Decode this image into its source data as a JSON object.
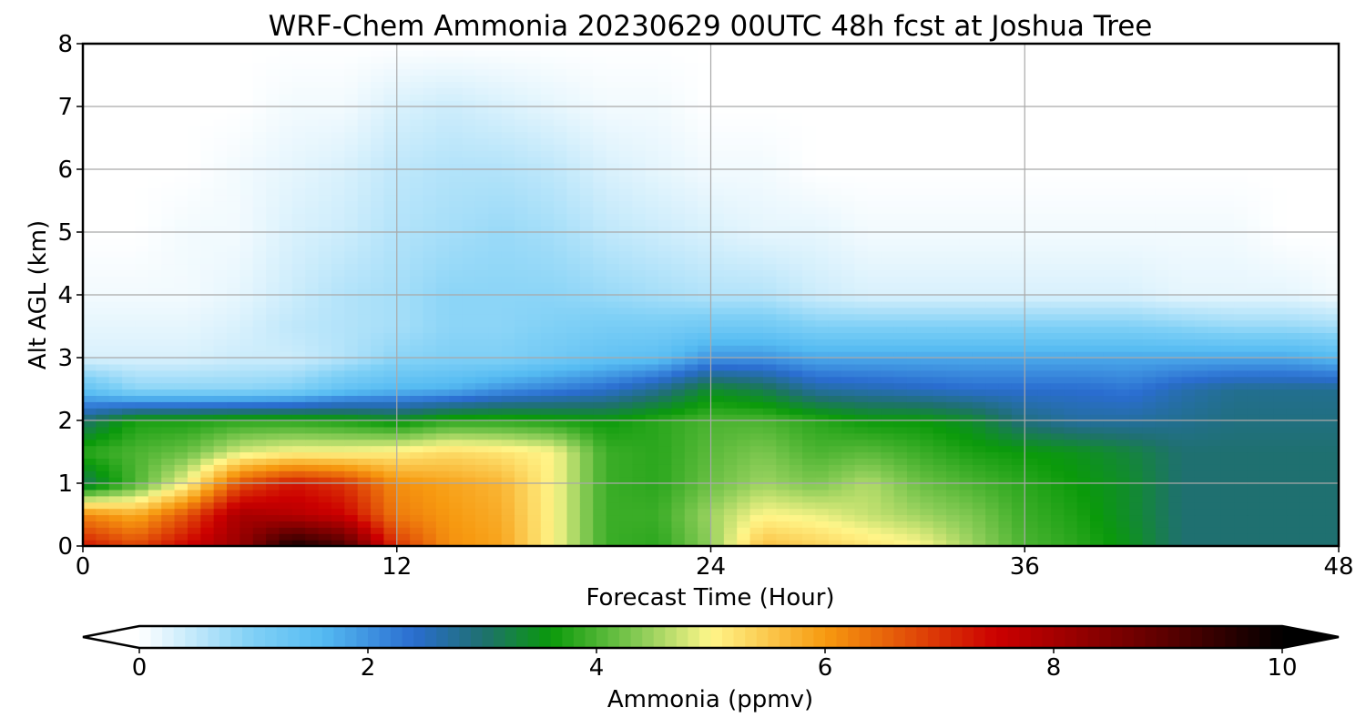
{
  "chart_data": {
    "type": "heatmap",
    "title": "WRF-Chem Ammonia  20230629 00UTC 48h fcst at Joshua Tree",
    "xlabel": "Forecast Time (Hour)",
    "ylabel": "Alt AGL (km)",
    "xlim": [
      0,
      48
    ],
    "ylim": [
      0,
      8
    ],
    "xticks": [
      0,
      12,
      24,
      36,
      48
    ],
    "yticks": [
      0,
      1,
      2,
      3,
      4,
      5,
      6,
      7,
      8
    ],
    "grid": true,
    "colorbar": {
      "label": "Ammonia  (ppmv)",
      "min": 0,
      "max": 10,
      "ticks": [
        0,
        2,
        4,
        6,
        8,
        10
      ],
      "extend": "both",
      "stops": [
        {
          "v": 0,
          "c": "#ffffff"
        },
        {
          "v": 1,
          "c": "#7fd0f6"
        },
        {
          "v": 1.6,
          "c": "#55bbf2"
        },
        {
          "v": 2.4,
          "c": "#2a6dd0"
        },
        {
          "v": 3.0,
          "c": "#1f7070"
        },
        {
          "v": 3.6,
          "c": "#0a9a0a"
        },
        {
          "v": 4.4,
          "c": "#8ccd58"
        },
        {
          "v": 5.0,
          "c": "#fff68a"
        },
        {
          "v": 6.0,
          "c": "#f79a10"
        },
        {
          "v": 7.5,
          "c": "#cc0000"
        },
        {
          "v": 9.0,
          "c": "#5a0000"
        },
        {
          "v": 10,
          "c": "#000000"
        }
      ]
    },
    "grid_data": {
      "x": [
        0,
        2,
        4,
        6,
        8,
        10,
        12,
        14,
        16,
        18,
        20,
        22,
        24,
        26,
        28,
        30,
        32,
        34,
        36,
        38,
        40,
        42,
        44,
        46,
        48
      ],
      "y": [
        0,
        0.5,
        1,
        1.5,
        2,
        2.5,
        3,
        3.5,
        4,
        5,
        6,
        7,
        8
      ],
      "z": [
        [
          7.3,
          6.8,
          7.5,
          8.2,
          9.8,
          9.2,
          7.0,
          6.1,
          5.9,
          5.0,
          3.9,
          3.8,
          4.4,
          5.6,
          5.4,
          5.2,
          5.0,
          4.5,
          4.0,
          3.8,
          3.5,
          3.0,
          3.0,
          3.0,
          3.0
        ],
        [
          6.2,
          5.8,
          6.7,
          8.0,
          7.8,
          7.5,
          6.3,
          6.0,
          5.8,
          5.0,
          3.9,
          3.9,
          4.5,
          5.0,
          4.9,
          4.7,
          4.5,
          4.3,
          3.9,
          3.7,
          3.4,
          3.0,
          3.0,
          3.0,
          3.0
        ],
        [
          3.1,
          4.0,
          5.0,
          6.7,
          7.3,
          7.0,
          6.1,
          5.9,
          5.7,
          5.0,
          3.9,
          3.8,
          4.2,
          4.5,
          4.3,
          4.6,
          4.2,
          4.0,
          3.8,
          3.6,
          3.4,
          3.0,
          3.0,
          3.0,
          3.0
        ],
        [
          3.8,
          4.0,
          4.2,
          4.8,
          5.0,
          5.0,
          5.1,
          5.3,
          5.2,
          5.0,
          3.9,
          3.8,
          4.1,
          4.3,
          4.0,
          4.1,
          3.9,
          3.7,
          3.6,
          3.5,
          3.3,
          3.0,
          3.0,
          3.0,
          3.0
        ],
        [
          3.0,
          3.7,
          3.7,
          3.8,
          3.8,
          3.7,
          3.5,
          3.8,
          3.8,
          3.7,
          3.6,
          3.8,
          4.0,
          4.0,
          3.8,
          3.6,
          3.6,
          3.4,
          2.9,
          2.7,
          2.7,
          2.8,
          2.9,
          2.9,
          2.9
        ],
        [
          1.4,
          0.9,
          0.9,
          0.9,
          1.0,
          1.4,
          1.6,
          1.7,
          2.0,
          2.2,
          2.4,
          2.8,
          3.4,
          3.2,
          2.7,
          2.6,
          2.5,
          2.4,
          2.4,
          2.4,
          2.3,
          2.6,
          2.8,
          2.8,
          2.8
        ],
        [
          0.3,
          0.3,
          0.3,
          0.4,
          0.4,
          0.6,
          0.9,
          1.0,
          1.0,
          1.2,
          1.4,
          1.5,
          2.0,
          2.0,
          1.8,
          1.8,
          1.8,
          1.8,
          1.8,
          1.8,
          1.8,
          1.8,
          1.8,
          1.8,
          1.6
        ],
        [
          0.2,
          0.2,
          0.2,
          0.3,
          0.5,
          0.6,
          0.7,
          0.9,
          0.9,
          1.0,
          1.1,
          1.1,
          1.2,
          1.2,
          1.0,
          1.0,
          1.0,
          1.0,
          1.0,
          1.0,
          1.0,
          0.9,
          0.8,
          0.8,
          0.7
        ],
        [
          0.1,
          0.1,
          0.1,
          0.2,
          0.4,
          0.6,
          0.7,
          0.9,
          0.9,
          0.9,
          0.8,
          0.7,
          0.6,
          0.6,
          0.4,
          0.3,
          0.3,
          0.3,
          0.3,
          0.3,
          0.3,
          0.2,
          0.2,
          0.2,
          0.1
        ],
        [
          0.0,
          0.0,
          0.1,
          0.1,
          0.3,
          0.4,
          0.6,
          0.7,
          0.8,
          0.7,
          0.5,
          0.4,
          0.3,
          0.2,
          0.2,
          0.1,
          0.1,
          0.1,
          0.1,
          0.1,
          0.1,
          0.1,
          0.1,
          0.0,
          0.0
        ],
        [
          0.0,
          0.0,
          0.0,
          0.1,
          0.2,
          0.3,
          0.5,
          0.6,
          0.6,
          0.5,
          0.3,
          0.2,
          0.1,
          0.1,
          0.0,
          0.0,
          0.0,
          0.0,
          0.0,
          0.0,
          0.0,
          0.0,
          0.0,
          0.0,
          0.0
        ],
        [
          0.0,
          0.0,
          0.0,
          0.0,
          0.1,
          0.1,
          0.3,
          0.4,
          0.3,
          0.2,
          0.1,
          0.1,
          0.0,
          0.0,
          0.0,
          0.0,
          0.0,
          0.0,
          0.0,
          0.0,
          0.0,
          0.0,
          0.0,
          0.0,
          0.0
        ],
        [
          0.0,
          0.0,
          0.0,
          0.0,
          0.0,
          0.0,
          0.0,
          0.0,
          0.0,
          0.0,
          0.0,
          0.0,
          0.0,
          0.0,
          0.0,
          0.0,
          0.0,
          0.0,
          0.0,
          0.0,
          0.0,
          0.0,
          0.0,
          0.0,
          0.0
        ]
      ]
    }
  }
}
